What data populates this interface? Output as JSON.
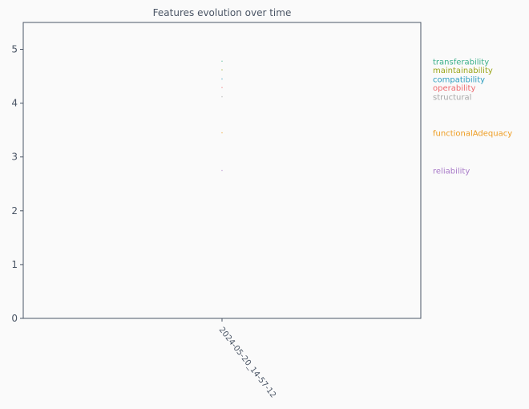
{
  "chart_data": {
    "type": "line",
    "title": "Features evolution over time",
    "xlabel": "",
    "ylabel": "",
    "x": [
      "2024-05-20_14-57-12"
    ],
    "ylim": [
      0,
      5.5
    ],
    "yticks": [
      0,
      1,
      2,
      3,
      4,
      5
    ],
    "grid": false,
    "legend_placement": "right of plot, labels at series end values",
    "series": [
      {
        "name": "transferability",
        "values": [
          4.78
        ],
        "color": "#3cb08a"
      },
      {
        "name": "maintainability",
        "values": [
          4.62
        ],
        "color": "#9aa51a"
      },
      {
        "name": "compatibility",
        "values": [
          4.45
        ],
        "color": "#2f9fc0"
      },
      {
        "name": "operability",
        "values": [
          4.29
        ],
        "color": "#ee6a6f"
      },
      {
        "name": "structural",
        "values": [
          4.12
        ],
        "color": "#a8a8a8"
      },
      {
        "name": "functionalAdequacy",
        "values": [
          3.45
        ],
        "color": "#ee9c20"
      },
      {
        "name": "reliability",
        "values": [
          2.75
        ],
        "color": "#a87ac8"
      }
    ],
    "colors": {
      "axis": "#4a5565",
      "text": "#4a5565",
      "background": "#fafafa"
    }
  }
}
